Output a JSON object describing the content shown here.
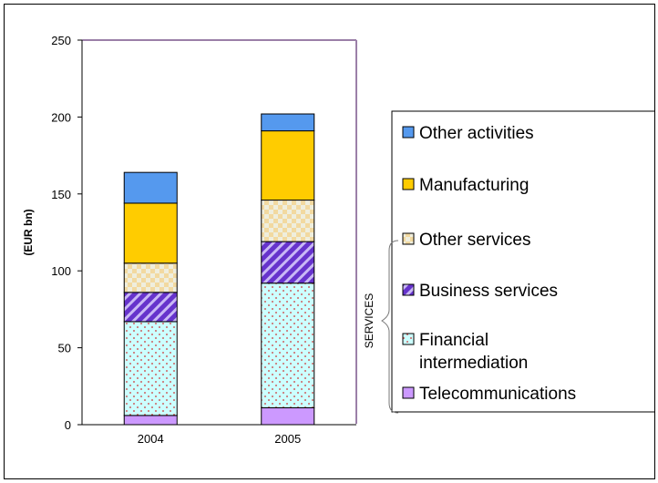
{
  "chart_data": {
    "type": "bar",
    "stacked": true,
    "categories": [
      "2004",
      "2005"
    ],
    "ylabel": "(EUR bn)",
    "ylim": [
      0,
      250
    ],
    "yticks": [
      0,
      50,
      100,
      150,
      200,
      250
    ],
    "grid": false,
    "legend_position": "right",
    "group_label": "SERVICES",
    "series": [
      {
        "name": "Telecommunications",
        "values": [
          6,
          11
        ],
        "color": "#cc99ff",
        "pattern": "solid"
      },
      {
        "name": "Financial intermediation",
        "values": [
          61,
          81
        ],
        "color": "#ccffff",
        "pattern": "dots"
      },
      {
        "name": "Business services",
        "values": [
          19,
          27
        ],
        "color": "#6633cc",
        "pattern": "diagonal"
      },
      {
        "name": "Other services",
        "values": [
          19,
          27
        ],
        "color": "#e6e0cc",
        "pattern": "checker"
      },
      {
        "name": "Manufacturing",
        "values": [
          39,
          45
        ],
        "color": "#ffcc00",
        "pattern": "solid"
      },
      {
        "name": "Other activities",
        "values": [
          20,
          11
        ],
        "color": "#5599ee",
        "pattern": "solid"
      }
    ],
    "legend_order": [
      "Other activities",
      "Manufacturing",
      "Other services",
      "Business services",
      "Financial intermediation",
      "Telecommunications"
    ]
  }
}
